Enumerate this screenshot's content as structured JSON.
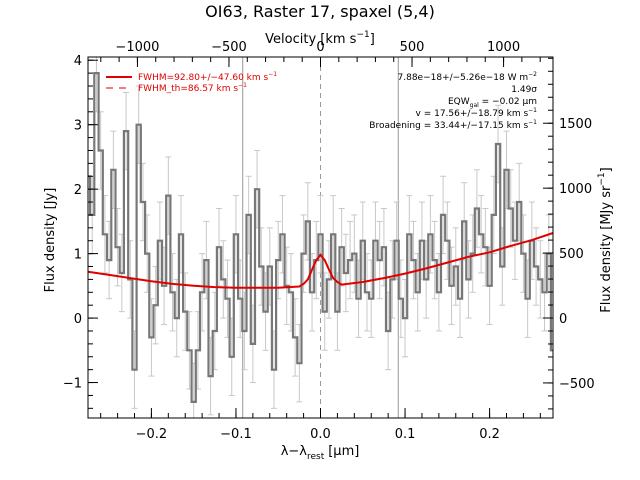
{
  "chart_data": {
    "type": "line",
    "title": "OI63, Raster 17, spaxel (5,4)",
    "xlabel": "λ−λ",
    "xlabel_sub": "rest",
    "xlabel_unit": "[μm]",
    "ylabel": "Flux density [Jy]",
    "top_axis_label": "Velocity [km s",
    "top_axis_label_sup": "−1",
    "top_axis_label_close": "]",
    "right_axis_label": "Flux density [MJy sr",
    "right_axis_label_sup": "−1",
    "right_axis_label_close": "]",
    "xlim": [
      -0.275,
      0.275
    ],
    "ylim": [
      -1.55,
      4.05
    ],
    "top_xlim": [
      -1270,
      1270
    ],
    "right_ylim": [
      -770,
      2010
    ],
    "x_ticks": [
      -0.2,
      -0.1,
      0.0,
      0.1,
      0.2
    ],
    "x_tick_labels": [
      "−0.2",
      "−0.1",
      "0.0",
      "0.1",
      "0.2"
    ],
    "y_ticks": [
      -1,
      0,
      1,
      2,
      3,
      4
    ],
    "y_tick_labels": [
      "−1",
      "0",
      "1",
      "2",
      "3",
      "4"
    ],
    "top_ticks": [
      -1000,
      -500,
      0,
      500,
      1000
    ],
    "top_tick_labels": [
      "−1000",
      "−500",
      "0",
      "500",
      "1000"
    ],
    "right_ticks": [
      -500,
      0,
      500,
      1000,
      1500
    ],
    "right_tick_labels": [
      "−500",
      "0",
      "500",
      "1000",
      "1500"
    ],
    "vertical_lines": [
      {
        "x": -0.092,
        "style": "solid"
      },
      {
        "x": 0.0,
        "style": "dashed"
      },
      {
        "x": 0.092,
        "style": "solid"
      }
    ],
    "legend": [
      {
        "label": "FWHM=92.80+/−47.60 km s",
        "sup": "−1",
        "style": "solid"
      },
      {
        "label": "FWHM_th=86.57 km s",
        "sup": "−1",
        "style": "dashed"
      }
    ],
    "annotations": [
      {
        "text": "7.88e−18+/−5.26e−18 W m",
        "sup": "−2"
      },
      {
        "text": "1.49σ"
      },
      {
        "text": "EQW",
        "sub": "gal",
        "tail": " = −0.02 μm"
      },
      {
        "text": "v = 17.56+/−18.79 km s",
        "sup": "−1"
      },
      {
        "text": "Broadening = 33.44+/−17.15 km s",
        "sup": "−1"
      }
    ],
    "series": [
      {
        "kind": "spectrum-histogram",
        "x": [
          -0.275,
          -0.27,
          -0.265,
          -0.26,
          -0.255,
          -0.25,
          -0.245,
          -0.24,
          -0.235,
          -0.23,
          -0.225,
          -0.22,
          -0.215,
          -0.21,
          -0.205,
          -0.2,
          -0.195,
          -0.19,
          -0.185,
          -0.18,
          -0.175,
          -0.17,
          -0.165,
          -0.16,
          -0.155,
          -0.15,
          -0.145,
          -0.14,
          -0.135,
          -0.13,
          -0.125,
          -0.12,
          -0.115,
          -0.11,
          -0.105,
          -0.1,
          -0.095,
          -0.09,
          -0.085,
          -0.08,
          -0.075,
          -0.07,
          -0.065,
          -0.06,
          -0.055,
          -0.05,
          -0.045,
          -0.04,
          -0.035,
          -0.03,
          -0.025,
          -0.02,
          -0.015,
          -0.01,
          -0.005,
          0.0,
          0.005,
          0.01,
          0.015,
          0.02,
          0.025,
          0.03,
          0.035,
          0.04,
          0.045,
          0.05,
          0.055,
          0.06,
          0.065,
          0.07,
          0.075,
          0.08,
          0.085,
          0.09,
          0.095,
          0.1,
          0.105,
          0.11,
          0.115,
          0.12,
          0.125,
          0.13,
          0.135,
          0.14,
          0.145,
          0.15,
          0.155,
          0.16,
          0.165,
          0.17,
          0.175,
          0.18,
          0.185,
          0.19,
          0.195,
          0.2,
          0.205,
          0.21,
          0.215,
          0.22,
          0.225,
          0.23,
          0.235,
          0.24,
          0.245,
          0.25,
          0.255,
          0.26,
          0.265,
          0.27,
          0.275
        ],
        "y": [
          2.2,
          1.6,
          3.8,
          2.6,
          1.3,
          0.9,
          2.3,
          1.1,
          0.7,
          2.9,
          0.6,
          -0.8,
          3.0,
          1.8,
          1.0,
          -0.3,
          0.2,
          1.2,
          0.5,
          1.9,
          0.4,
          0.0,
          1.3,
          0.1,
          -0.5,
          -1.3,
          -0.5,
          0.4,
          0.9,
          -0.9,
          -0.2,
          1.1,
          0.6,
          0.3,
          -0.6,
          1.3,
          0.3,
          -0.2,
          1.6,
          -0.4,
          2.0,
          0.8,
          0.1,
          0.8,
          -0.8,
          0.9,
          1.3,
          0.5,
          0.4,
          -0.3,
          -0.7,
          1.0,
          1.5,
          0.4,
          0.9,
          1.3,
          0.1,
          0.6,
          1.3,
          0.1,
          1.1,
          0.7,
          0.9,
          1.0,
          0.3,
          1.2,
          0.4,
          0.3,
          1.2,
          0.9,
          1.1,
          -0.2,
          0.6,
          1.2,
          0.3,
          0.0,
          1.3,
          0.9,
          0.4,
          1.2,
          0.6,
          1.3,
          0.9,
          0.4,
          1.6,
          1.2,
          0.5,
          0.8,
          0.3,
          1.5,
          0.6,
          1.0,
          1.7,
          1.3,
          1.1,
          0.5,
          1.6,
          2.7,
          0.8,
          2.3,
          1.7,
          1.2,
          1.8,
          1.0,
          0.3,
          1.2,
          0.8,
          0.6,
          0.4,
          1.0,
          -0.5
        ],
        "yerr": 0.6
      },
      {
        "kind": "fit",
        "x": [
          -0.275,
          -0.25,
          -0.225,
          -0.2,
          -0.175,
          -0.15,
          -0.125,
          -0.1,
          -0.075,
          -0.05,
          -0.025,
          -0.02,
          -0.015,
          -0.01,
          -0.005,
          0.0,
          0.005,
          0.01,
          0.015,
          0.02,
          0.025,
          0.05,
          0.075,
          0.1,
          0.125,
          0.15,
          0.175,
          0.2,
          0.225,
          0.25,
          0.275
        ],
        "y": [
          0.72,
          0.67,
          0.62,
          0.57,
          0.53,
          0.5,
          0.48,
          0.47,
          0.47,
          0.47,
          0.49,
          0.53,
          0.6,
          0.75,
          0.9,
          0.98,
          0.9,
          0.75,
          0.62,
          0.56,
          0.52,
          0.56,
          0.62,
          0.69,
          0.77,
          0.86,
          0.95,
          1.02,
          1.12,
          1.21,
          1.32
        ]
      }
    ]
  }
}
